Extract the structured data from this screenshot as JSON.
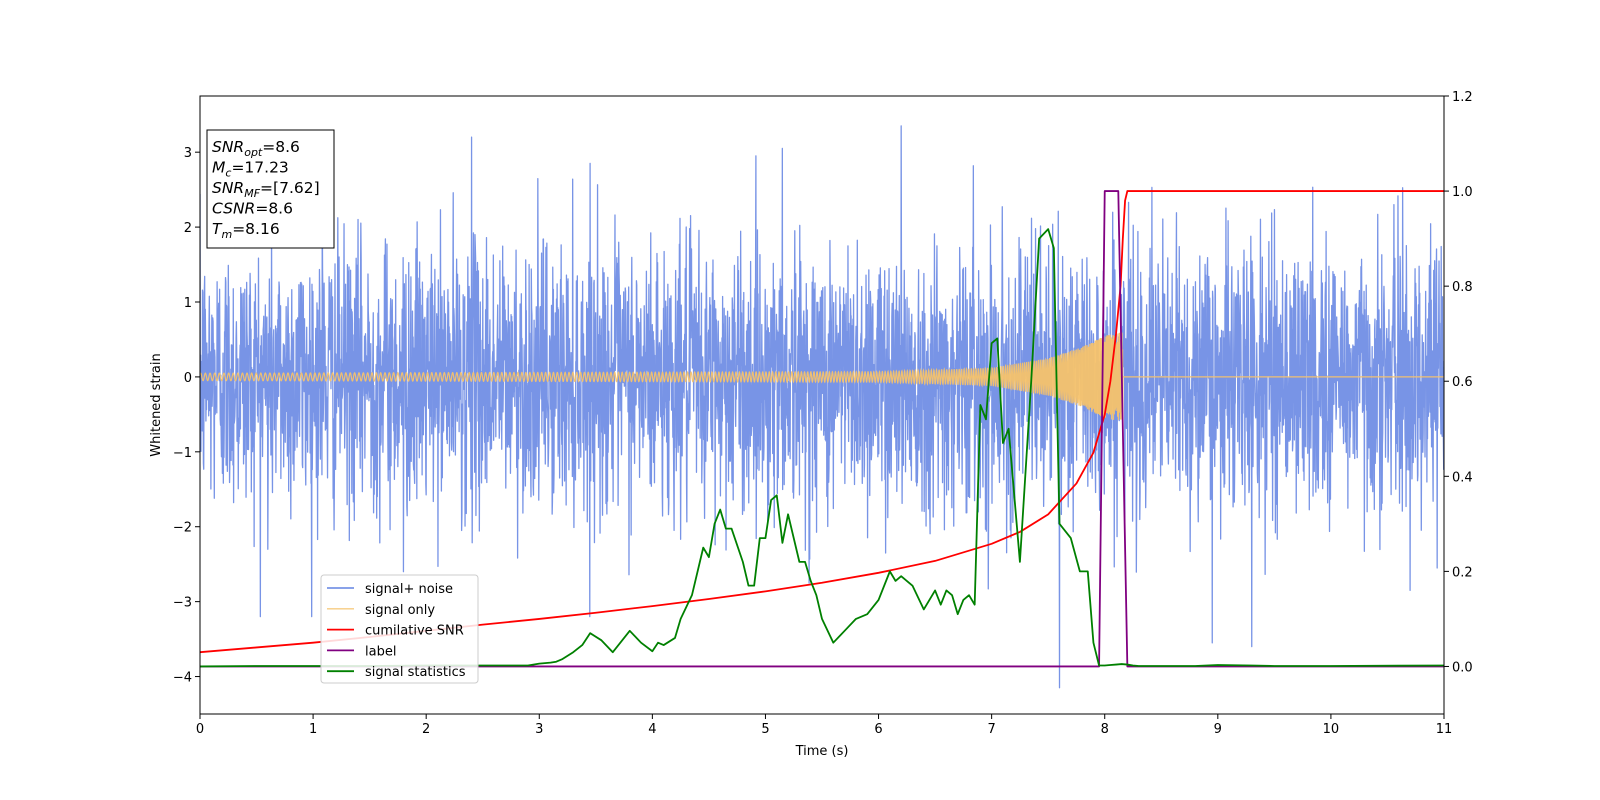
{
  "chart_data": {
    "type": "line",
    "xlabel": "Time (s)",
    "ylabel_left": "Whitened strain",
    "ylabel_right": "",
    "xlim": [
      0,
      11
    ],
    "ylim_left": [
      -4.5,
      3.75
    ],
    "ylim_right": [
      -0.1,
      1.2
    ],
    "x_ticks": [
      "0",
      "1",
      "2",
      "3",
      "4",
      "5",
      "6",
      "7",
      "8",
      "9",
      "10",
      "11"
    ],
    "y_ticks_left": [
      "−4",
      "−3",
      "−2",
      "−1",
      "0",
      "1",
      "2",
      "3"
    ],
    "y_ticks_right": [
      "0.0",
      "0.2",
      "0.4",
      "0.6",
      "0.8",
      "1.0",
      "1.2"
    ],
    "grid": false,
    "legend_position": "lower-left",
    "annotation": {
      "lines": [
        {
          "sym": "SNR",
          "sub": "opt",
          "value": "=8.6"
        },
        {
          "sym": "M",
          "sub": "c",
          "value": "=17.23"
        },
        {
          "sym": "SNR",
          "sub": "MF",
          "value": "=[7.62]"
        },
        {
          "sym": "CSNR",
          "sub": "",
          "value": "=8.6"
        },
        {
          "sym": "T",
          "sub": "m",
          "value": "=8.16"
        }
      ]
    },
    "series": [
      {
        "name": "signal+ noise",
        "axis": "left",
        "color": "#7894e6",
        "description_of_values": "whitened noise, approx. gaussian, std ~0.9, range -4.15 to 3.4",
        "notable_points": [
          [
            0.6,
            -2.3
          ],
          [
            1.08,
            2.3
          ],
          [
            1.8,
            -2.6
          ],
          [
            2.4,
            3.2
          ],
          [
            3.45,
            2.85
          ],
          [
            5.15,
            3.05
          ],
          [
            6.2,
            3.35
          ],
          [
            7.6,
            -4.15
          ],
          [
            8.95,
            -3.55
          ],
          [
            9.3,
            -3.6
          ],
          [
            10.7,
            -2.85
          ]
        ]
      },
      {
        "name": "signal only",
        "axis": "left",
        "color": "#f5c26b",
        "description_of_values": "chirp, amplitude ~0.05 rising to ~0.6 near t=8.16, zero afterwards",
        "amplitude_envelope": [
          [
            0,
            0.05
          ],
          [
            6,
            0.07
          ],
          [
            7,
            0.12
          ],
          [
            7.5,
            0.25
          ],
          [
            7.8,
            0.4
          ],
          [
            8.0,
            0.55
          ],
          [
            8.16,
            0.6
          ],
          [
            8.17,
            0.0
          ],
          [
            11,
            0.0
          ]
        ]
      },
      {
        "name": "cumilative SNR",
        "axis": "right",
        "color": "#ff0000",
        "x": [
          0,
          0.5,
          1,
          1.5,
          2,
          2.5,
          3,
          3.5,
          4,
          4.5,
          5,
          5.5,
          6,
          6.5,
          7,
          7.25,
          7.5,
          7.75,
          7.9,
          8.0,
          8.05,
          8.1,
          8.14,
          8.16,
          8.18,
          8.2,
          9,
          10,
          11
        ],
        "values": [
          0.03,
          0.04,
          0.05,
          0.062,
          0.075,
          0.088,
          0.1,
          0.113,
          0.127,
          0.142,
          0.158,
          0.176,
          0.197,
          0.222,
          0.258,
          0.283,
          0.32,
          0.385,
          0.45,
          0.53,
          0.6,
          0.7,
          0.8,
          0.9,
          0.98,
          1.0,
          1.0,
          1.0,
          1.0
        ]
      },
      {
        "name": "label",
        "axis": "right",
        "color": "#800080",
        "x": [
          0,
          7.95,
          8.0,
          8.12,
          8.2,
          11
        ],
        "values": [
          0,
          0,
          1,
          1,
          0,
          0
        ]
      },
      {
        "name": "signal statistics",
        "axis": "right",
        "color": "#008000",
        "x": [
          0,
          0.5,
          1,
          1.5,
          2,
          2.5,
          2.9,
          3.0,
          3.1,
          3.15,
          3.2,
          3.3,
          3.38,
          3.45,
          3.55,
          3.65,
          3.8,
          3.9,
          4.0,
          4.05,
          4.1,
          4.2,
          4.25,
          4.35,
          4.45,
          4.5,
          4.55,
          4.6,
          4.65,
          4.7,
          4.8,
          4.85,
          4.9,
          4.95,
          5.0,
          5.05,
          5.1,
          5.15,
          5.2,
          5.25,
          5.3,
          5.35,
          5.4,
          5.45,
          5.5,
          5.6,
          5.7,
          5.8,
          5.9,
          6.0,
          6.1,
          6.15,
          6.2,
          6.3,
          6.4,
          6.5,
          6.55,
          6.6,
          6.65,
          6.7,
          6.75,
          6.8,
          6.85,
          6.9,
          6.95,
          7.0,
          7.05,
          7.1,
          7.15,
          7.25,
          7.35,
          7.42,
          7.5,
          7.55,
          7.6,
          7.7,
          7.78,
          7.85,
          7.9,
          7.95,
          8.0,
          8.05,
          8.1,
          8.15,
          8.2,
          8.25,
          8.3,
          8.4,
          8.5,
          8.6,
          8.7,
          8.8,
          9.0,
          9.3,
          9.5,
          10,
          11
        ],
        "values": [
          0,
          0.001,
          0.001,
          0.001,
          0.002,
          0.002,
          0.002,
          0.006,
          0.008,
          0.01,
          0.015,
          0.03,
          0.045,
          0.07,
          0.055,
          0.03,
          0.075,
          0.05,
          0.032,
          0.05,
          0.045,
          0.06,
          0.1,
          0.15,
          0.25,
          0.23,
          0.3,
          0.33,
          0.29,
          0.29,
          0.22,
          0.17,
          0.17,
          0.27,
          0.27,
          0.35,
          0.36,
          0.26,
          0.32,
          0.27,
          0.22,
          0.22,
          0.18,
          0.15,
          0.1,
          0.05,
          0.075,
          0.1,
          0.11,
          0.14,
          0.2,
          0.18,
          0.19,
          0.17,
          0.12,
          0.16,
          0.13,
          0.16,
          0.15,
          0.11,
          0.14,
          0.15,
          0.13,
          0.55,
          0.52,
          0.68,
          0.69,
          0.47,
          0.5,
          0.22,
          0.6,
          0.9,
          0.92,
          0.88,
          0.3,
          0.27,
          0.2,
          0.2,
          0.05,
          0.002,
          0.002,
          0.003,
          0.004,
          0.005,
          0.004,
          0.002,
          0.001,
          0.001,
          0.001,
          0.001,
          0.001,
          0.001,
          0.003,
          0.002,
          0.001,
          0.001,
          0.002
        ]
      }
    ]
  }
}
